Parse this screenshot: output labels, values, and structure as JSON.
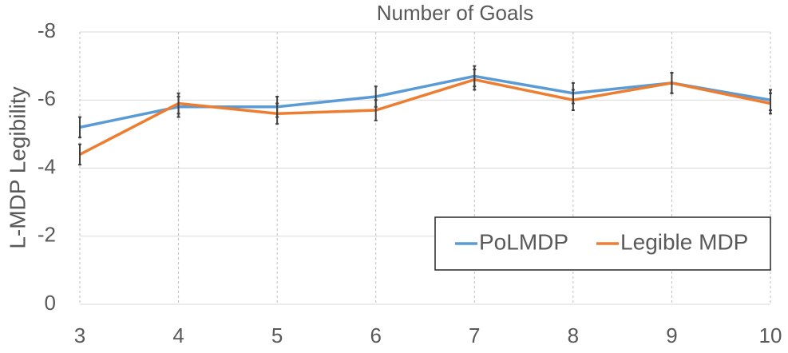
{
  "chart_data": {
    "type": "line",
    "xlabel": "Number of Goals",
    "ylabel": "L-MDP Legibility",
    "x": [
      3,
      4,
      5,
      6,
      7,
      8,
      9,
      10
    ],
    "series": [
      {
        "name": "PoLMDP",
        "color": "#5b9bd5",
        "values": [
          -5.2,
          -5.8,
          -5.8,
          -6.1,
          -6.7,
          -6.2,
          -6.5,
          -6.0
        ],
        "errors": [
          0.3,
          0.3,
          0.3,
          0.3,
          0.3,
          0.3,
          0.3,
          0.3
        ]
      },
      {
        "name": "Legible MDP",
        "color": "#ed7d31",
        "values": [
          -4.4,
          -5.9,
          -5.6,
          -5.7,
          -6.6,
          -6.0,
          -6.5,
          -5.9
        ],
        "errors": [
          0.3,
          0.3,
          0.3,
          0.3,
          0.3,
          0.3,
          0.3,
          0.3
        ]
      }
    ],
    "xlim": [
      3,
      10
    ],
    "xticks": [
      3,
      4,
      5,
      6,
      7,
      8,
      9,
      10
    ],
    "ylim": [
      0,
      -8
    ],
    "yticks": [
      0,
      -2,
      -4,
      -6,
      -8
    ],
    "grid": true,
    "legend": "lower right",
    "error_color": "#404040"
  }
}
